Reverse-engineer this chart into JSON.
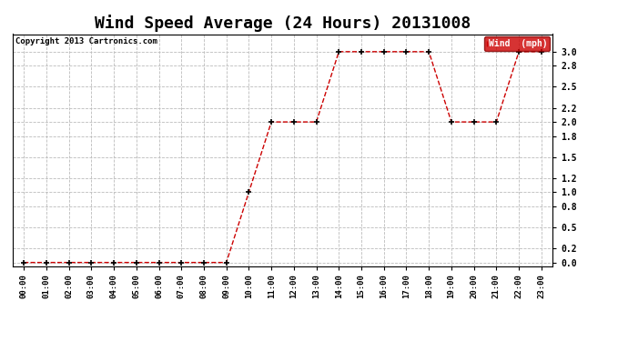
{
  "title": "Wind Speed Average (24 Hours) 20131008",
  "copyright": "Copyright 2013 Cartronics.com",
  "legend_label": "Wind  (mph)",
  "x_labels": [
    "00:00",
    "01:00",
    "02:00",
    "03:00",
    "04:00",
    "05:00",
    "06:00",
    "07:00",
    "08:00",
    "09:00",
    "10:00",
    "11:00",
    "12:00",
    "13:00",
    "14:00",
    "15:00",
    "16:00",
    "17:00",
    "18:00",
    "19:00",
    "20:00",
    "21:00",
    "22:00",
    "23:00"
  ],
  "x_values": [
    0,
    1,
    2,
    3,
    4,
    5,
    6,
    7,
    8,
    9,
    10,
    11,
    12,
    13,
    14,
    15,
    16,
    17,
    18,
    19,
    20,
    21,
    22,
    23
  ],
  "y_values": [
    0.0,
    0.0,
    0.0,
    0.0,
    0.0,
    0.0,
    0.0,
    0.0,
    0.0,
    0.0,
    1.0,
    2.0,
    2.0,
    2.0,
    3.0,
    3.0,
    3.0,
    3.0,
    3.0,
    2.0,
    2.0,
    2.0,
    3.0,
    3.0
  ],
  "ylim": [
    -0.05,
    3.25
  ],
  "yticks": [
    0.0,
    0.2,
    0.5,
    0.8,
    1.0,
    1.2,
    1.5,
    1.8,
    2.0,
    2.2,
    2.5,
    2.8,
    3.0
  ],
  "ytick_labels": [
    "0.0",
    "0.2",
    "0.5",
    "0.8",
    "1.0",
    "1.2",
    "1.5",
    "1.8",
    "2.0",
    "2.2",
    "2.5",
    "2.8",
    "3.0"
  ],
  "line_color": "#cc0000",
  "marker": "+",
  "marker_color": "#000000",
  "bg_color": "#ffffff",
  "grid_color": "#bbbbbb",
  "title_fontsize": 13,
  "legend_bg": "#cc0000",
  "legend_fg": "#ffffff",
  "figwidth": 6.9,
  "figheight": 3.75,
  "dpi": 100
}
